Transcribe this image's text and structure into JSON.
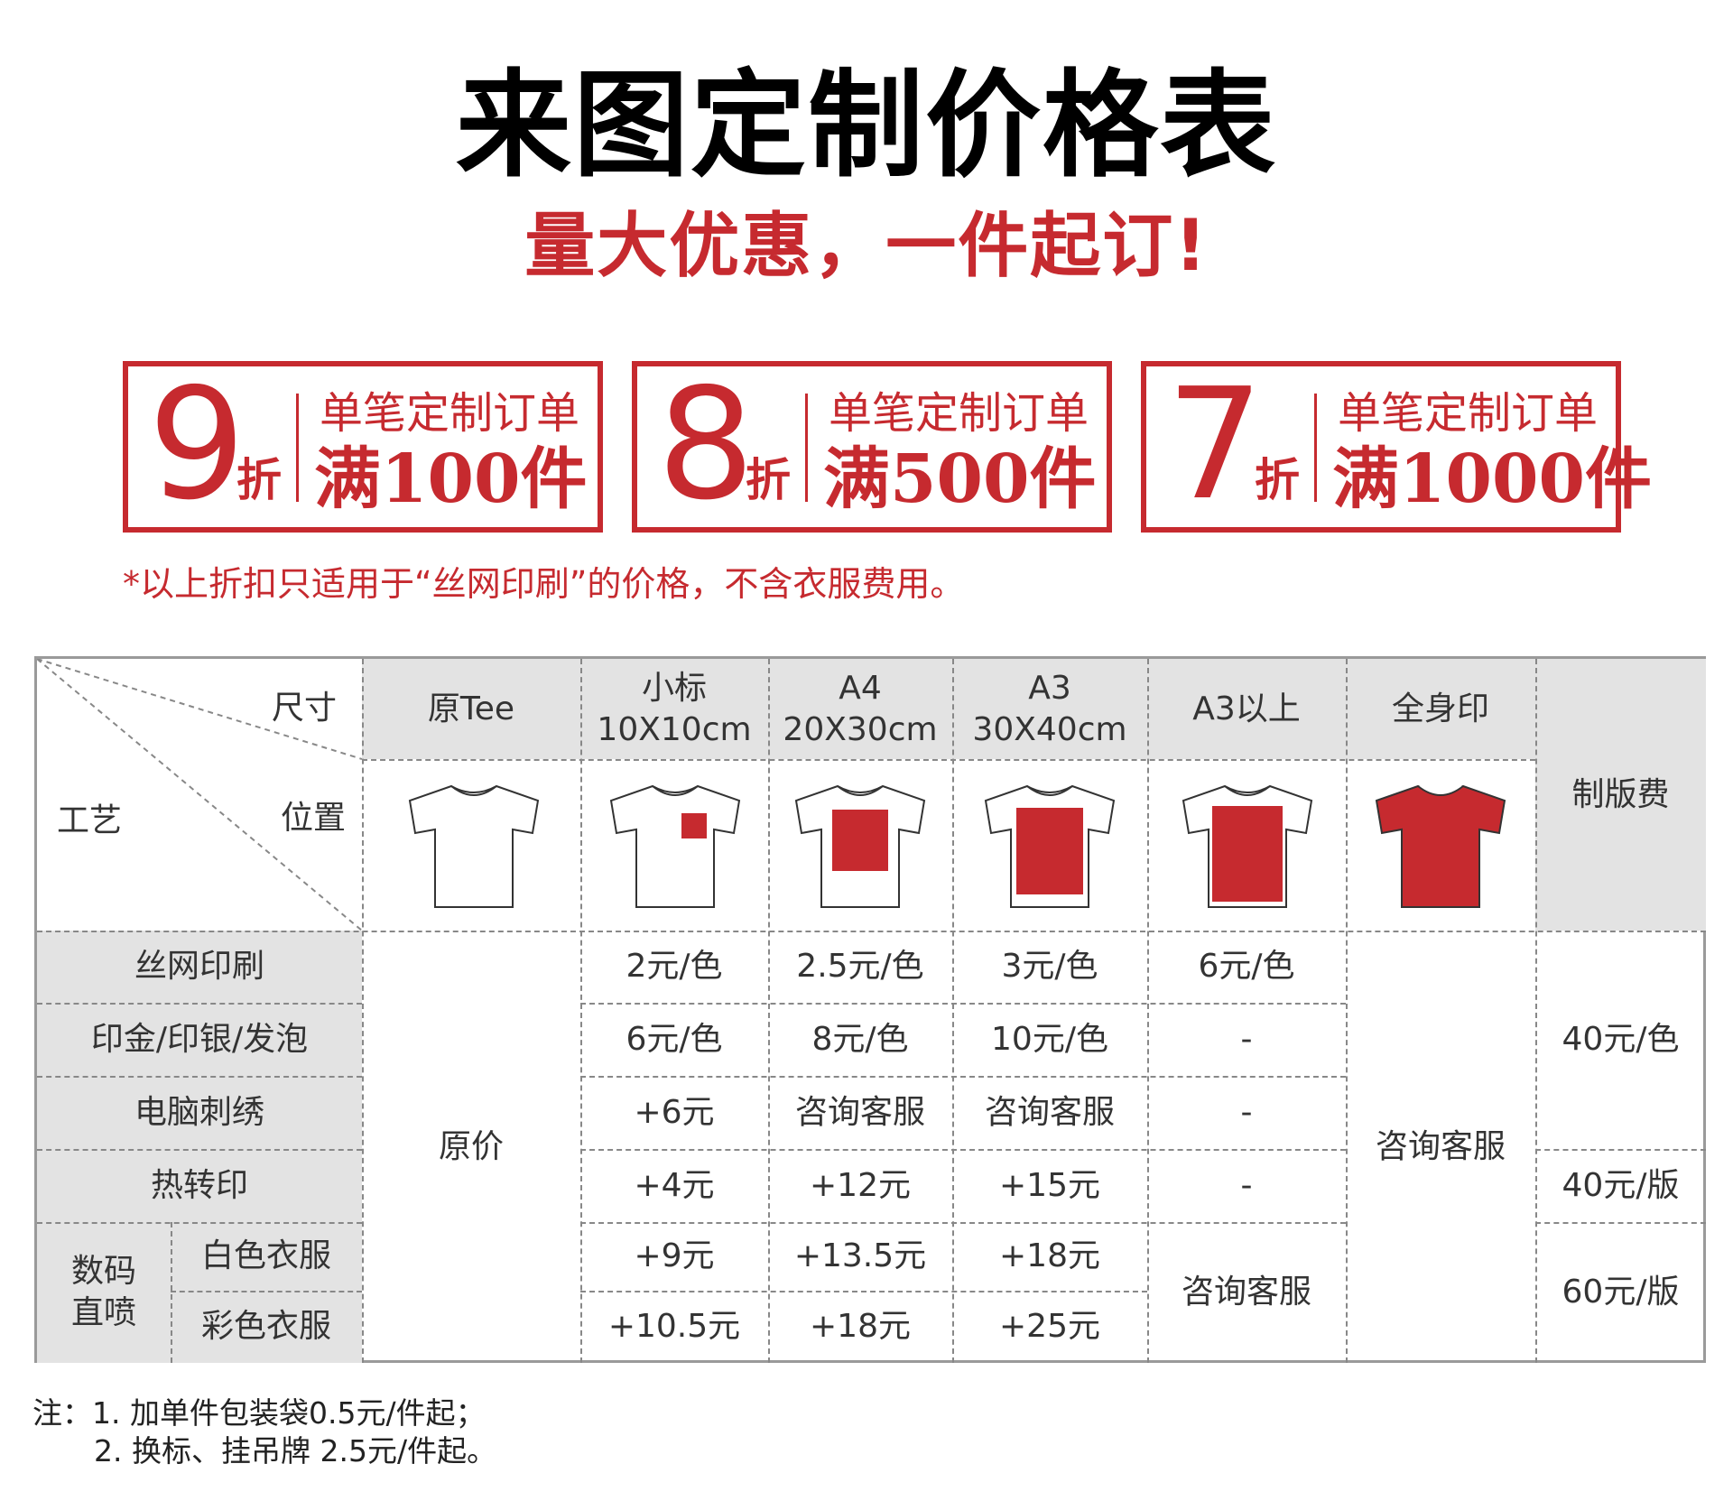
{
  "title": "来图定制价格表",
  "subtitle": "量大优惠，一件起订!",
  "discounts": [
    {
      "number": "9",
      "unit": "折",
      "line1": "单笔定制订单",
      "line2": "满100件"
    },
    {
      "number": "8",
      "unit": "折",
      "line1": "单笔定制订单",
      "line2": "满500件"
    },
    {
      "number": "7",
      "unit": "折",
      "line1": "单笔定制订单",
      "line2": "满1000件"
    }
  ],
  "disclaimer": "*以上折扣只适用于“丝网印刷”的价格，不含衣服费用。",
  "table": {
    "corner": {
      "size": "尺寸",
      "craft": "工艺",
      "position": "位置"
    },
    "columns": [
      {
        "name": "原Tee",
        "size": ""
      },
      {
        "name": "小标",
        "size": "10X10cm"
      },
      {
        "name": "A4",
        "size": "20X30cm"
      },
      {
        "name": "A3",
        "size": "30X40cm"
      },
      {
        "name": "A3以上",
        "size": ""
      },
      {
        "name": "全身印",
        "size": ""
      }
    ],
    "plate_fee_header": "制版费",
    "rows": [
      {
        "name": "丝网印刷",
        "values": [
          "2元/色",
          "2.5元/色",
          "3元/色",
          "6元/色"
        ]
      },
      {
        "name": "印金/印银/发泡",
        "values": [
          "6元/色",
          "8元/色",
          "10元/色",
          "-"
        ]
      },
      {
        "name": "电脑刺绣",
        "values": [
          "+6元",
          "咨询客服",
          "咨询客服",
          "-"
        ]
      },
      {
        "name": "热转印",
        "values": [
          "+4元",
          "+12元",
          "+15元",
          "-"
        ]
      },
      {
        "name": "白色衣服",
        "values": [
          "+9元",
          "+13.5元",
          "+18元"
        ]
      },
      {
        "name": "彩色衣服",
        "values": [
          "+10.5元",
          "+18元",
          "+25元"
        ]
      }
    ],
    "digital_group": "数码\n直喷",
    "original_price": "原价",
    "fullprint_value": "咨询客服",
    "digital_a3plus": "咨询客服",
    "plate_fees": [
      "40元/色",
      "40元/版",
      "60元/版"
    ]
  },
  "notes": [
    "注：1. 加单件包装袋0.5元/件起；",
    "2. 换标、挂吊牌 2.5元/件起。"
  ],
  "colors": {
    "accent": "#c62a2f",
    "header_gray": "#e3e3e3",
    "border": "#9a9a9a"
  },
  "icons": [
    "tshirt-blank-icon",
    "tshirt-small-logo-icon",
    "tshirt-a4-print-icon",
    "tshirt-a3-print-icon",
    "tshirt-a3plus-print-icon",
    "tshirt-full-print-icon"
  ]
}
